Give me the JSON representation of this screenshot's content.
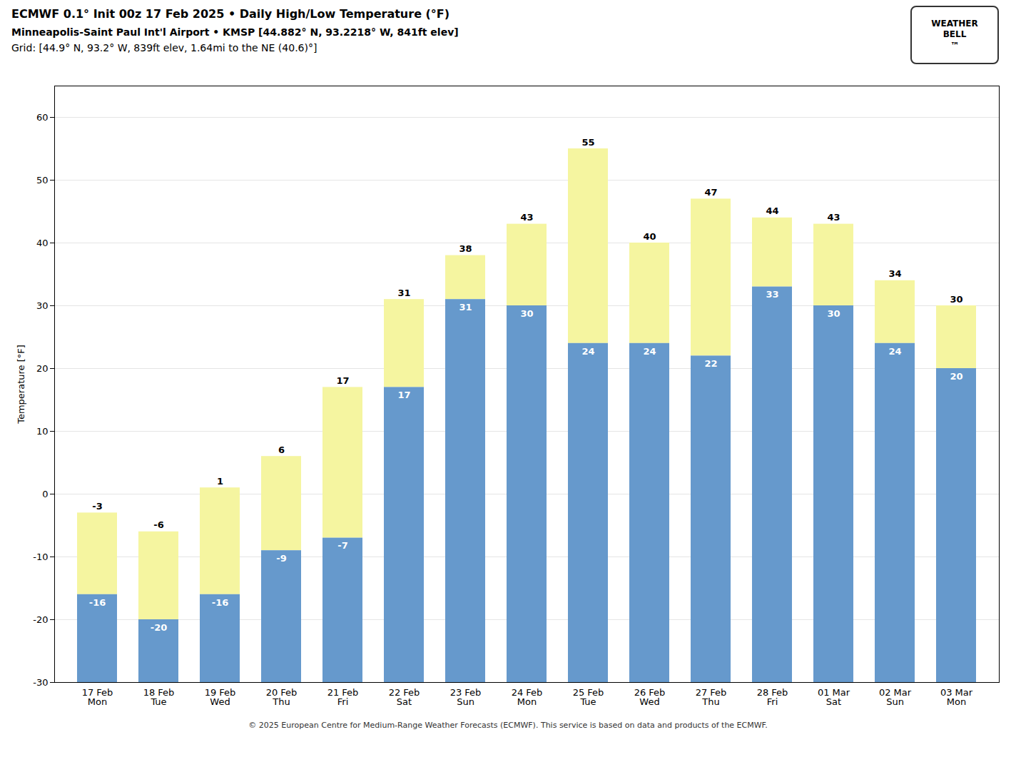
{
  "chart_data": {
    "type": "bar",
    "title": "ECMWF 0.1° Init 00z 17 Feb 2025 • Daily High/Low Temperature (°F)",
    "subtitle": [
      "Minneapolis-Saint Paul Int'l Airport • KMSP [44.882° N, 93.2218° W, 841ft elev]",
      "Grid: [44.9° N, 93.2° W, 839ft elev, 1.64mi to the NE (40.6)°]"
    ],
    "annotations": [
      "WEATHER",
      "BELL",
      "™"
    ],
    "caption": "© 2025 European Centre for Medium-Range Weather Forecasts (ECMWF). This service is based on data and products of the ECMWF.",
    "categories": [
      "17 Feb\nMon",
      "18 Feb\nTue",
      "19 Feb\nWed",
      "20 Feb\nThu",
      "21 Feb\nFri",
      "22 Feb\nSat",
      "23 Feb\nSun",
      "24 Feb\nMon",
      "25 Feb\nTue",
      "26 Feb\nWed",
      "27 Feb\nThu",
      "28 Feb\nFri",
      "01 Mar\nSat",
      "02 Mar\nSun",
      "03 Mar\nMon"
    ],
    "series": [
      {
        "color": "#F5F5A0",
        "values": [
          -3,
          -6,
          1,
          6,
          17,
          31,
          38,
          43,
          55,
          40,
          47,
          44,
          43,
          34,
          30
        ]
      },
      {
        "color": "#6699CC",
        "values": [
          -16,
          -20,
          -16,
          -9,
          -7,
          17,
          31,
          30,
          24,
          24,
          22,
          33,
          30,
          24,
          20
        ]
      }
    ],
    "ylabel": "Temperature [°F]",
    "ylim": [
      -30,
      65
    ],
    "yticks": [
      -30,
      -20,
      -10,
      0,
      10,
      20,
      30,
      40,
      50,
      60
    ],
    "grid": true,
    "data_labels": true
  }
}
